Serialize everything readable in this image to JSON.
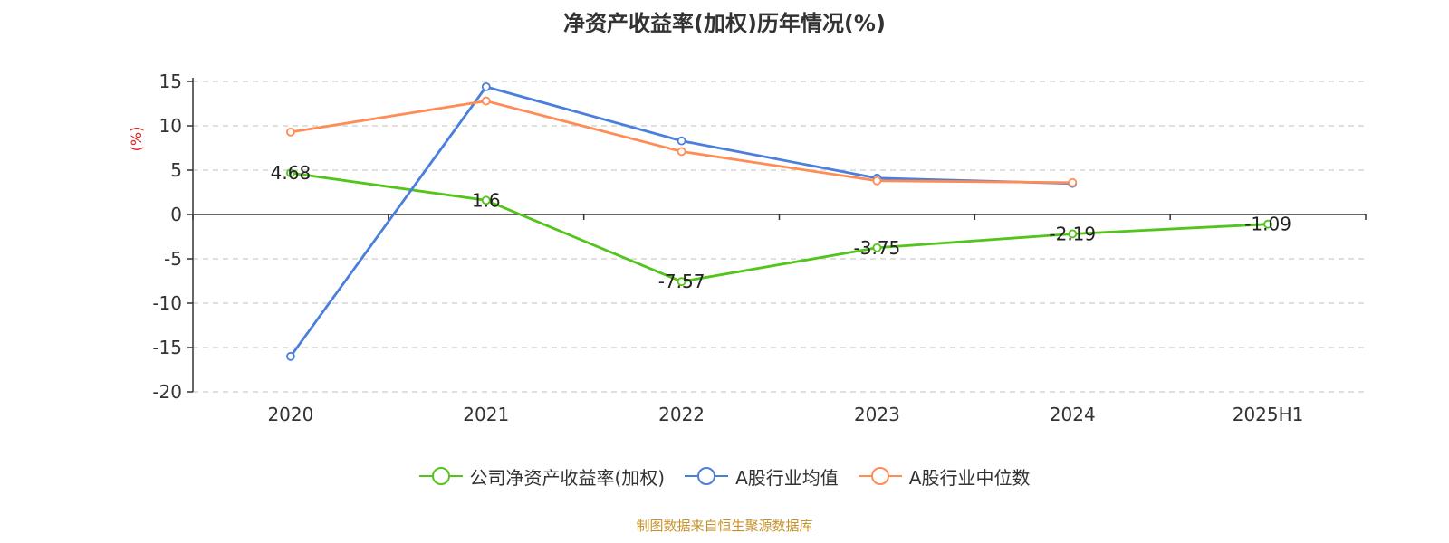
{
  "title": "净资产收益率(加权)历年情况(%)",
  "source_note": "制图数据来自恒生聚源数据库",
  "chart_data": {
    "type": "line",
    "title": "净资产收益率(加权)历年情况(%)",
    "ylabel": "(%)",
    "xlabel": "",
    "categories": [
      "2020",
      "2021",
      "2022",
      "2023",
      "2024",
      "2025H1"
    ],
    "ylim": [
      -20,
      15
    ],
    "yticks": [
      15,
      10,
      5,
      0,
      -5,
      -10,
      -15,
      -20
    ],
    "grid": true,
    "legend_position": "bottom",
    "series": [
      {
        "name": "公司净资产收益率(加权)",
        "color": "#52c41a",
        "values": [
          4.68,
          1.6,
          -7.57,
          -3.75,
          -2.19,
          -1.09
        ],
        "data_labels": [
          "4.68",
          "1.6",
          "-7.57",
          "-3.75",
          "-2.19",
          "-1.09"
        ]
      },
      {
        "name": "A股行业均值",
        "color": "#4a7fdb",
        "values": [
          -16.0,
          14.4,
          8.3,
          4.1,
          3.5,
          null
        ]
      },
      {
        "name": "A股行业中位数",
        "color": "#ff8c55",
        "values": [
          9.3,
          12.8,
          7.1,
          3.8,
          3.6,
          null
        ]
      }
    ]
  }
}
